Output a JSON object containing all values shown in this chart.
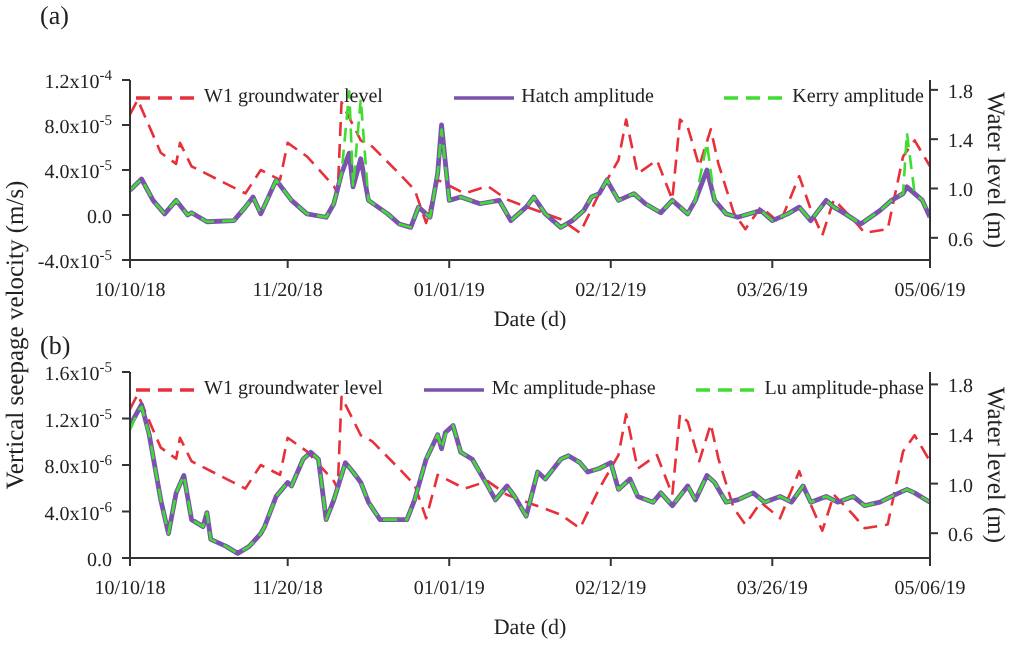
{
  "chart_data": [
    {
      "type": "line",
      "title": "(a)",
      "xlabel": "Date (d)",
      "ylabel": "Vertical seepage velocity (m/s)",
      "y2label": "Water level (m)",
      "legend": "top",
      "line_style": "solid",
      "xlim": [
        "2018-10-10",
        "2019-05-06"
      ],
      "xticks": [
        {
          "value": "2018-10-10",
          "label": "10/10/18"
        },
        {
          "value": "2018-11-20",
          "label": "11/20/18"
        },
        {
          "value": "2019-01-01",
          "label": "01/01/19"
        },
        {
          "value": "2019-02-12",
          "label": "02/12/19"
        },
        {
          "value": "2019-03-26",
          "label": "03/26/19"
        },
        {
          "value": "2019-05-06",
          "label": "05/06/19"
        }
      ],
      "ylim": [
        -4e-05,
        0.00012
      ],
      "yticks": [
        {
          "value": -4e-05,
          "label": "-4.0x10$^{-5}$"
        },
        {
          "value": 0,
          "label": "0.0"
        },
        {
          "value": 4e-05,
          "label": "4.0x10$^{-5}$"
        },
        {
          "value": 8e-05,
          "label": "8.0x10$^{-5}$"
        },
        {
          "value": 0.00012,
          "label": "1.2x10$^{-4}$"
        }
      ],
      "y2lim": [
        0.42,
        1.88
      ],
      "y2ticks": [
        {
          "value": 0.6,
          "label": "0.6"
        },
        {
          "value": 1.0,
          "label": "1.0"
        },
        {
          "value": 1.4,
          "label": "1.4"
        },
        {
          "value": 1.8,
          "label": "1.8"
        }
      ],
      "x": [
        "2018-10-10",
        "2018-10-13",
        "2018-10-16",
        "2018-10-19",
        "2018-10-22",
        "2018-10-25",
        "2018-10-26",
        "2018-10-30",
        "2018-11-06",
        "2018-11-09",
        "2018-11-11",
        "2018-11-13",
        "2018-11-17",
        "2018-11-21",
        "2018-11-25",
        "2018-11-30",
        "2018-12-02",
        "2018-12-04",
        "2018-12-06",
        "2018-12-07",
        "2018-12-09",
        "2018-12-11",
        "2018-12-16",
        "2018-12-19",
        "2018-12-22",
        "2018-12-24",
        "2018-12-27",
        "2018-12-29",
        "2018-12-30",
        "2019-01-01",
        "2019-01-04",
        "2019-01-09",
        "2019-01-14",
        "2019-01-17",
        "2019-01-21",
        "2019-01-23",
        "2019-01-26",
        "2019-01-30",
        "2019-02-02",
        "2019-02-05",
        "2019-02-07",
        "2019-02-09",
        "2019-02-11",
        "2019-02-14",
        "2019-02-18",
        "2019-02-21",
        "2019-02-25",
        "2019-02-28",
        "2019-03-04",
        "2019-03-06",
        "2019-03-09",
        "2019-03-11",
        "2019-03-14",
        "2019-03-17",
        "2019-03-23",
        "2019-03-26",
        "2019-03-30",
        "2019-04-02",
        "2019-04-05",
        "2019-04-09",
        "2019-04-11",
        "2019-04-14",
        "2019-04-18",
        "2019-04-23",
        "2019-04-26",
        "2019-04-29",
        "2019-04-30",
        "2019-05-02",
        "2019-05-04",
        "2019-05-06"
      ],
      "series": [
        {
          "name": "W1 groundwater level",
          "color": "#e8303a",
          "line_style": "dashed",
          "axis": "y2",
          "x": [
            "2018-10-10",
            "2018-10-12",
            "2018-10-18",
            "2018-10-22",
            "2018-10-23",
            "2018-10-26",
            "2018-11-02",
            "2018-11-09",
            "2018-11-13",
            "2018-11-18",
            "2018-11-20",
            "2018-11-25",
            "2018-12-02",
            "2018-12-03",
            "2018-12-04",
            "2018-12-09",
            "2018-12-12",
            "2018-12-19",
            "2018-12-23",
            "2018-12-26",
            "2018-12-29",
            "2019-01-05",
            "2019-01-11",
            "2019-01-16",
            "2019-01-23",
            "2019-01-30",
            "2019-02-04",
            "2019-02-09",
            "2019-02-14",
            "2019-02-16",
            "2019-02-19",
            "2019-02-24",
            "2019-02-28",
            "2019-03-02",
            "2019-03-04",
            "2019-03-07",
            "2019-03-10",
            "2019-03-12",
            "2019-03-16",
            "2019-03-19",
            "2019-03-23",
            "2019-03-28",
            "2019-04-02",
            "2019-04-05",
            "2019-04-08",
            "2019-04-11",
            "2019-04-16",
            "2019-04-19",
            "2019-04-25",
            "2019-04-29",
            "2019-05-02",
            "2019-05-06"
          ],
          "values": [
            1.6,
            1.72,
            1.29,
            1.2,
            1.37,
            1.18,
            1.07,
            0.96,
            1.15,
            1.07,
            1.37,
            1.26,
            1.02,
            0.96,
            1.7,
            1.39,
            1.34,
            1.12,
            0.99,
            0.72,
            1.07,
            0.96,
            1.02,
            0.91,
            0.83,
            0.75,
            0.64,
            0.96,
            1.23,
            1.56,
            1.12,
            1.23,
            0.91,
            1.56,
            1.5,
            1.18,
            1.48,
            1.2,
            0.8,
            0.67,
            0.85,
            0.72,
            1.1,
            0.83,
            0.62,
            0.91,
            0.75,
            0.64,
            0.67,
            1.26,
            1.39,
            1.18
          ]
        },
        {
          "name": "Hatch amplitude",
          "color": "#7b52ae",
          "values": [
            2.2e-05,
            3.2e-05,
            1.3e-05,
            1e-06,
            1.3e-05,
            0,
            2e-06,
            -6e-06,
            -5e-06,
            7e-06,
            1.6e-05,
            1e-06,
            3.1e-05,
            1.3e-05,
            1e-06,
            -2e-06,
            1e-05,
            3.7e-05,
            5.5e-05,
            2.5e-05,
            5e-05,
            1.3e-05,
            1e-06,
            -8e-06,
            -1.1e-05,
            7e-06,
            -2e-06,
            3.7e-05,
            8e-05,
            1.3e-05,
            1.6e-05,
            1e-05,
            1.3e-05,
            -5e-06,
            7e-06,
            1.6e-05,
            1e-06,
            -1.1e-05,
            -5e-06,
            4e-06,
            1.6e-05,
            1.9e-05,
            3.1e-05,
            1.3e-05,
            1.9e-05,
            1e-05,
            2e-06,
            1.3e-05,
            1e-06,
            1.3e-05,
            4e-05,
            1.3e-05,
            1e-06,
            -2e-06,
            4e-06,
            -5e-06,
            1e-06,
            7e-06,
            -5e-06,
            1.3e-05,
            7e-06,
            1e-06,
            -8e-06,
            4e-06,
            1.3e-05,
            1.9e-05,
            2.5e-05,
            1.9e-05,
            1.3e-05,
            -2e-06
          ]
        },
        {
          "name": "Kerry amplitude",
          "color": "#40dd30",
          "line_style": "dashed",
          "values": [
            2.2e-05,
            3.2e-05,
            1.3e-05,
            1e-06,
            1.3e-05,
            0,
            2e-06,
            -6e-06,
            -5e-06,
            7e-06,
            1.6e-05,
            1e-06,
            3.1e-05,
            1.3e-05,
            1e-06,
            -2e-06,
            1e-05,
            3.7e-05,
            0.00011,
            2.5e-05,
            0.000103,
            1.3e-05,
            1e-06,
            -8e-06,
            -1.1e-05,
            7e-06,
            -2e-06,
            3.7e-05,
            7.6e-05,
            1.3e-05,
            1.6e-05,
            1e-05,
            1.3e-05,
            -5e-06,
            7e-06,
            1.6e-05,
            1e-06,
            -1.1e-05,
            -5e-06,
            4e-06,
            1.6e-05,
            1.9e-05,
            3.1e-05,
            1.3e-05,
            1.9e-05,
            1e-05,
            2e-06,
            1.3e-05,
            1e-06,
            1.3e-05,
            6.4e-05,
            1.3e-05,
            1e-06,
            -2e-06,
            4e-06,
            -5e-06,
            1e-06,
            7e-06,
            -5e-06,
            1.3e-05,
            7e-06,
            1e-06,
            -8e-06,
            4e-06,
            1.3e-05,
            1.9e-05,
            7.3e-05,
            1.9e-05,
            1.3e-05,
            -2e-06
          ]
        }
      ]
    },
    {
      "type": "line",
      "title": "(b)",
      "xlabel": "Date (d)",
      "y2label": "Water level (m)",
      "legend": "top",
      "line_style": "solid",
      "xlim": [
        "2018-10-10",
        "2019-05-06"
      ],
      "xticks": [
        {
          "value": "2018-10-10",
          "label": "10/10/18"
        },
        {
          "value": "2018-11-20",
          "label": "11/20/18"
        },
        {
          "value": "2019-01-01",
          "label": "01/01/19"
        },
        {
          "value": "2019-02-12",
          "label": "02/12/19"
        },
        {
          "value": "2019-03-26",
          "label": "03/26/19"
        },
        {
          "value": "2019-05-06",
          "label": "05/06/19"
        }
      ],
      "ylim": [
        0,
        1.6e-05
      ],
      "yticks": [
        {
          "value": 0,
          "label": "0.0"
        },
        {
          "value": 4e-06,
          "label": "4.0x10$^{-6}$"
        },
        {
          "value": 8e-06,
          "label": "8.0x10$^{-6}$"
        },
        {
          "value": 1.2e-05,
          "label": "1.2x10$^{-5}$"
        },
        {
          "value": 1.6e-05,
          "label": "1.6x10$^{-5}$"
        }
      ],
      "y2lim": [
        0.4,
        1.9
      ],
      "y2ticks": [
        {
          "value": 0.6,
          "label": "0.6"
        },
        {
          "value": 1.0,
          "label": "1.0"
        },
        {
          "value": 1.4,
          "label": "1.4"
        },
        {
          "value": 1.8,
          "label": "1.8"
        }
      ],
      "x": [
        "2018-10-10",
        "2018-10-12",
        "2018-10-13",
        "2018-10-15",
        "2018-10-18",
        "2018-10-20",
        "2018-10-22",
        "2018-10-24",
        "2018-10-26",
        "2018-10-29",
        "2018-10-30",
        "2018-10-31",
        "2018-11-04",
        "2018-11-07",
        "2018-11-10",
        "2018-11-13",
        "2018-11-14",
        "2018-11-17",
        "2018-11-20",
        "2018-11-21",
        "2018-11-24",
        "2018-11-26",
        "2018-11-28",
        "2018-11-30",
        "2018-12-02",
        "2018-12-05",
        "2018-12-07",
        "2018-12-09",
        "2018-12-11",
        "2018-12-14",
        "2018-12-17",
        "2018-12-21",
        "2018-12-23",
        "2018-12-26",
        "2018-12-29",
        "2018-12-30",
        "2018-12-31",
        "2019-01-02",
        "2019-01-04",
        "2019-01-07",
        "2019-01-11",
        "2019-01-13",
        "2019-01-16",
        "2019-01-18",
        "2019-01-21",
        "2019-01-24",
        "2019-01-26",
        "2019-01-30",
        "2019-02-01",
        "2019-02-04",
        "2019-02-06",
        "2019-02-09",
        "2019-02-12",
        "2019-02-14",
        "2019-02-17",
        "2019-02-19",
        "2019-02-23",
        "2019-02-25",
        "2019-02-28",
        "2019-03-04",
        "2019-03-06",
        "2019-03-09",
        "2019-03-11",
        "2019-03-14",
        "2019-03-17",
        "2019-03-21",
        "2019-03-24",
        "2019-03-28",
        "2019-03-31",
        "2019-04-03",
        "2019-04-05",
        "2019-04-09",
        "2019-04-12",
        "2019-04-16",
        "2019-04-19",
        "2019-04-23",
        "2019-04-26",
        "2019-04-30",
        "2019-05-02",
        "2019-05-06"
      ],
      "series": [
        {
          "name": "W1 groundwater level",
          "color": "#e8303a",
          "line_style": "dashed",
          "axis": "y2",
          "x": [
            "2018-10-10",
            "2018-10-12",
            "2018-10-18",
            "2018-10-22",
            "2018-10-23",
            "2018-10-26",
            "2018-11-02",
            "2018-11-09",
            "2018-11-13",
            "2018-11-18",
            "2018-11-20",
            "2018-11-25",
            "2018-12-02",
            "2018-12-03",
            "2018-12-04",
            "2018-12-09",
            "2018-12-12",
            "2018-12-19",
            "2018-12-23",
            "2018-12-26",
            "2018-12-29",
            "2019-01-05",
            "2019-01-11",
            "2019-01-16",
            "2019-01-23",
            "2019-01-30",
            "2019-02-04",
            "2019-02-09",
            "2019-02-14",
            "2019-02-16",
            "2019-02-19",
            "2019-02-24",
            "2019-02-28",
            "2019-03-02",
            "2019-03-04",
            "2019-03-07",
            "2019-03-10",
            "2019-03-12",
            "2019-03-16",
            "2019-03-19",
            "2019-03-23",
            "2019-03-28",
            "2019-04-02",
            "2019-04-05",
            "2019-04-08",
            "2019-04-11",
            "2019-04-16",
            "2019-04-19",
            "2019-04-25",
            "2019-04-29",
            "2019-05-02",
            "2019-05-06"
          ],
          "values": [
            1.6,
            1.72,
            1.29,
            1.2,
            1.37,
            1.18,
            1.07,
            0.96,
            1.15,
            1.07,
            1.37,
            1.26,
            1.02,
            0.96,
            1.7,
            1.39,
            1.34,
            1.12,
            0.99,
            0.72,
            1.07,
            0.96,
            1.02,
            0.91,
            0.83,
            0.75,
            0.64,
            0.96,
            1.23,
            1.56,
            1.12,
            1.23,
            0.91,
            1.56,
            1.5,
            1.18,
            1.48,
            1.2,
            0.8,
            0.67,
            0.85,
            0.72,
            1.1,
            0.83,
            0.62,
            0.91,
            0.75,
            0.64,
            0.67,
            1.26,
            1.39,
            1.18
          ]
        },
        {
          "name": "Mc amplitude-phase",
          "color": "#7b52ae",
          "values": [
            1.14e-05,
            1.26e-05,
            1.32e-05,
            1.06e-05,
            5e-06,
            2.1e-06,
            5.6e-06,
            7.1e-06,
            3.3e-06,
            2.7e-06,
            3.9e-06,
            1.6e-06,
            1e-06,
            4e-07,
            1e-06,
            2.1e-06,
            2.7e-06,
            5.3e-06,
            6.5e-06,
            6.2e-06,
            8.5e-06,
            9.1e-06,
            8.5e-06,
            3.3e-06,
            5e-06,
            8.2e-06,
            7.4e-06,
            6.5e-06,
            4.8e-06,
            3.3e-06,
            3.3e-06,
            3.3e-06,
            5e-06,
            8.5e-06,
            1.06e-05,
            9.4e-06,
            1.08e-05,
            1.14e-05,
            9.1e-06,
            8.5e-06,
            6.2e-06,
            5e-06,
            6.2e-06,
            5.3e-06,
            3.6e-06,
            7.4e-06,
            6.8e-06,
            8.5e-06,
            8.8e-06,
            8.2e-06,
            7.4e-06,
            7.7e-06,
            8.2e-06,
            5.9e-06,
            6.8e-06,
            5.3e-06,
            4.8e-06,
            5.6e-06,
            4.5e-06,
            6.2e-06,
            5e-06,
            7.1e-06,
            6.5e-06,
            4.8e-06,
            5e-06,
            5.6e-06,
            4.8e-06,
            5.3e-06,
            4.8e-06,
            6.2e-06,
            4.8e-06,
            5.3e-06,
            4.8e-06,
            5.3e-06,
            4.5e-06,
            4.8e-06,
            5.3e-06,
            5.9e-06,
            5.6e-06,
            4.8e-06
          ]
        },
        {
          "name": "Lu amplitude-phase",
          "color": "#40dd30",
          "line_style": "dashed",
          "values": [
            1.1e-05,
            1.26e-05,
            1.3e-05,
            1.06e-05,
            5e-06,
            2.1e-06,
            5.6e-06,
            7.1e-06,
            3.3e-06,
            2.7e-06,
            3.9e-06,
            1.6e-06,
            1e-06,
            4e-07,
            1e-06,
            2.1e-06,
            2.7e-06,
            5.3e-06,
            6.5e-06,
            6.2e-06,
            8.5e-06,
            9.1e-06,
            8.5e-06,
            3.3e-06,
            5e-06,
            8.2e-06,
            7.4e-06,
            6.5e-06,
            4.8e-06,
            3.3e-06,
            3.3e-06,
            3.3e-06,
            5e-06,
            8.5e-06,
            1.06e-05,
            9.4e-06,
            1.06e-05,
            1.14e-05,
            9.1e-06,
            8.5e-06,
            6.2e-06,
            5e-06,
            6.2e-06,
            5.3e-06,
            3.6e-06,
            7.4e-06,
            6.8e-06,
            8.5e-06,
            8.8e-06,
            8.2e-06,
            7.4e-06,
            7.7e-06,
            8.2e-06,
            5.9e-06,
            6.8e-06,
            5.3e-06,
            4.8e-06,
            5.6e-06,
            4.5e-06,
            6.2e-06,
            5e-06,
            7.1e-06,
            6.5e-06,
            4.8e-06,
            5e-06,
            5.6e-06,
            4.8e-06,
            5.3e-06,
            4.8e-06,
            6.2e-06,
            4.8e-06,
            5.3e-06,
            4.8e-06,
            5.3e-06,
            4.5e-06,
            4.8e-06,
            5.3e-06,
            5.9e-06,
            5.6e-06,
            4.8e-06
          ]
        }
      ]
    }
  ]
}
